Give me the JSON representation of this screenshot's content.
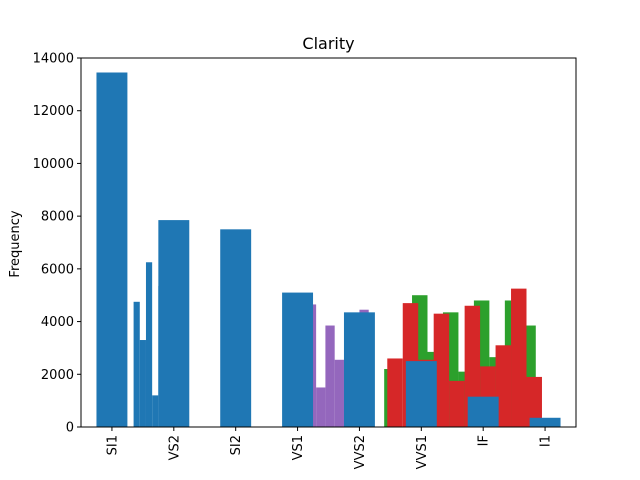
{
  "chart_data": {
    "type": "bar",
    "title": "Clarity",
    "xlabel": "",
    "ylabel": "Frequency",
    "ylim": [
      0,
      14000
    ],
    "y_ticks": [
      0,
      2000,
      4000,
      6000,
      8000,
      10000,
      12000,
      14000
    ],
    "categories": [
      "SI1",
      "VS2",
      "SI2",
      "VS1",
      "VVS2",
      "VVS1",
      "IF",
      "I1"
    ],
    "main_series": {
      "color": "#1f77b4",
      "values": [
        13450,
        7850,
        7500,
        5100,
        4350,
        2500,
        1150,
        350
      ]
    },
    "extra_series": [
      {
        "color": "#1f77b4",
        "bars": [
          {
            "x": [
              0.35,
              0.45
            ],
            "value": 4750
          },
          {
            "x": [
              0.45,
              0.55
            ],
            "value": 3300
          },
          {
            "x": [
              0.55,
              0.65
            ],
            "value": 6250
          },
          {
            "x": [
              0.65,
              0.75
            ],
            "value": 1200
          },
          {
            "x": [
              0.75,
              0.85
            ],
            "value": 5350
          }
        ]
      },
      {
        "color": "#9467bd",
        "bars": [
          {
            "x": [
              3.15,
              3.3
            ],
            "value": 4650
          },
          {
            "x": [
              3.3,
              3.45
            ],
            "value": 1500
          },
          {
            "x": [
              3.45,
              3.6
            ],
            "value": 3850
          },
          {
            "x": [
              3.6,
              3.75
            ],
            "value": 2550
          },
          {
            "x": [
              3.75,
              3.85
            ],
            "value": 2300
          },
          {
            "x": [
              4.0,
              4.15
            ],
            "value": 4450
          }
        ]
      },
      {
        "color": "#2ca02c",
        "bars": [
          {
            "x": [
              4.4,
              4.5
            ],
            "value": 2200
          },
          {
            "x": [
              4.85,
              5.1
            ],
            "value": 5000
          },
          {
            "x": [
              5.1,
              5.35
            ],
            "value": 2850
          },
          {
            "x": [
              5.35,
              5.6
            ],
            "value": 4350
          },
          {
            "x": [
              5.6,
              5.85
            ],
            "value": 2100
          },
          {
            "x": [
              5.85,
              6.1
            ],
            "value": 4800
          },
          {
            "x": [
              6.1,
              6.35
            ],
            "value": 2650
          },
          {
            "x": [
              6.35,
              6.6
            ],
            "value": 4800
          },
          {
            "x": [
              6.6,
              6.85
            ],
            "value": 3850
          }
        ]
      },
      {
        "color": "#d62728",
        "bars": [
          {
            "x": [
              4.45,
              4.7
            ],
            "value": 2600
          },
          {
            "x": [
              4.7,
              4.95
            ],
            "value": 4700
          },
          {
            "x": [
              4.95,
              5.2
            ],
            "value": 2550
          },
          {
            "x": [
              5.2,
              5.45
            ],
            "value": 4300
          },
          {
            "x": [
              5.45,
              5.7
            ],
            "value": 1750
          },
          {
            "x": [
              5.7,
              5.95
            ],
            "value": 4600
          },
          {
            "x": [
              5.95,
              6.2
            ],
            "value": 2300
          },
          {
            "x": [
              6.2,
              6.45
            ],
            "value": 3100
          },
          {
            "x": [
              6.45,
              6.7
            ],
            "value": 5250
          },
          {
            "x": [
              6.7,
              6.95
            ],
            "value": 1900
          }
        ]
      }
    ],
    "grid": false,
    "legend": "none"
  }
}
